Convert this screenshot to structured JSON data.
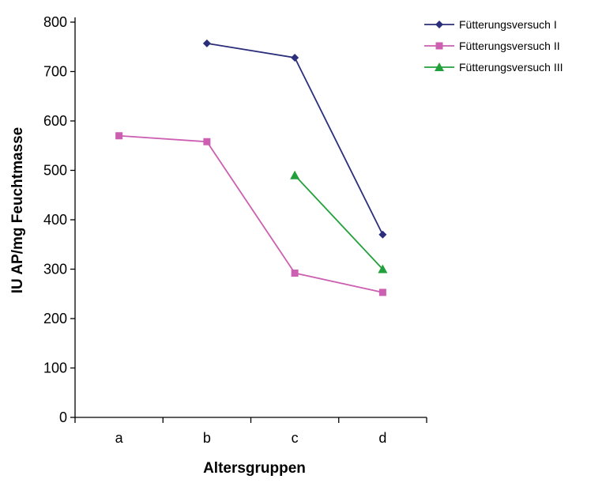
{
  "chart_data": {
    "type": "line",
    "title": "",
    "xlabel": "Altersgruppen",
    "ylabel": "IU AP/mg Feuchtmasse",
    "categories": [
      "a",
      "b",
      "c",
      "d"
    ],
    "ylim": [
      0,
      800
    ],
    "yticks": [
      "0",
      "100",
      "200",
      "300",
      "400",
      "500",
      "600",
      "700",
      "800"
    ],
    "grid": false,
    "legend_position": "top-right",
    "series": [
      {
        "name": "Fütterungsversuch I",
        "values": [
          null,
          757,
          728,
          370
        ],
        "color": "#2b2e7a",
        "marker": "diamond"
      },
      {
        "name": "Fütterungsversuch II",
        "values": [
          570,
          558,
          292,
          253
        ],
        "color": "#cc5fb1",
        "marker": "square"
      },
      {
        "name": "Fütterungsversuch III",
        "values": [
          null,
          null,
          490,
          300
        ],
        "color": "#22a03b",
        "marker": "triangle"
      }
    ]
  }
}
